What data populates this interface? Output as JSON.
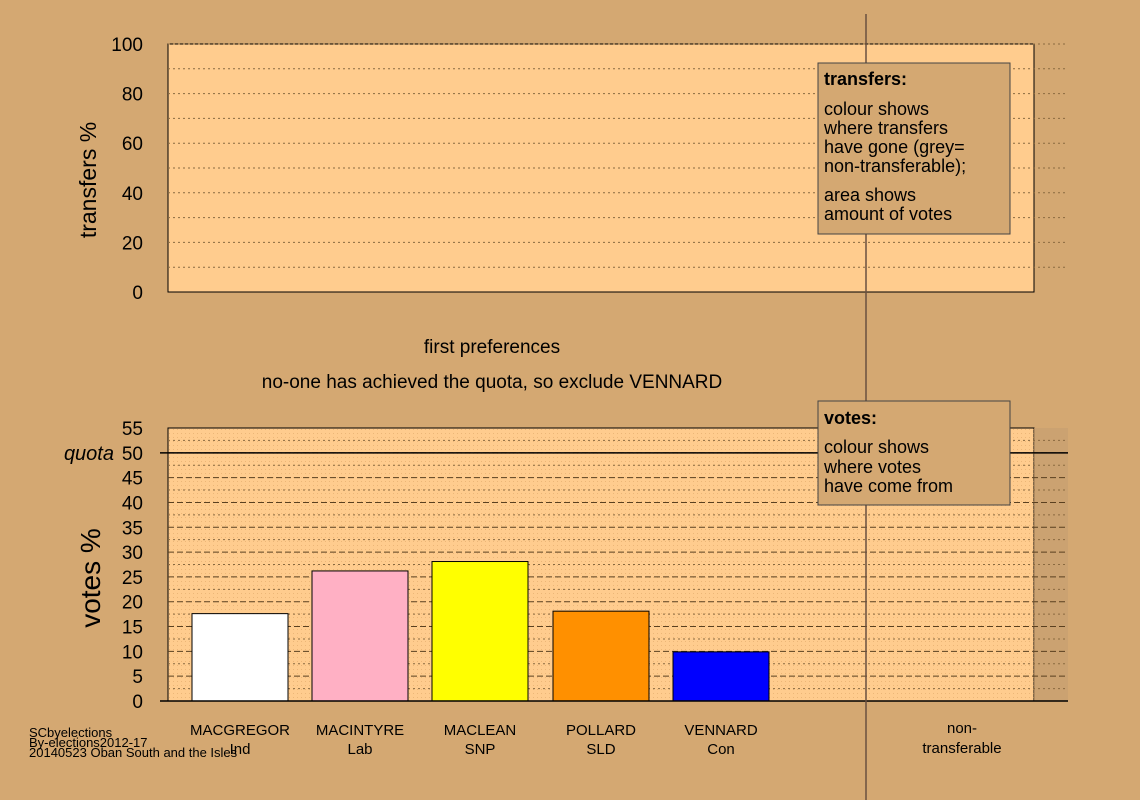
{
  "colors": {
    "page_bg": "#d4a872",
    "plot_bg": "#ffcc8e",
    "box_bg": "#d4a872",
    "nontransferable_shade": "#c8a070"
  },
  "chart_data": [
    {
      "type": "bar",
      "title": "",
      "ylabel": "transfers %",
      "ylim": [
        0,
        100
      ],
      "yticks": [
        0,
        20,
        40,
        60,
        80,
        100
      ],
      "grid": true,
      "values": []
    },
    {
      "type": "bar",
      "ylabel": "votes %",
      "ylim": [
        0,
        55
      ],
      "yticks": [
        0,
        5,
        10,
        15,
        20,
        25,
        30,
        35,
        40,
        45,
        50,
        55
      ],
      "grid": true,
      "quota": 50,
      "quota_label": "quota",
      "categories": [
        {
          "name": "MACGREGOR",
          "party": "Ind"
        },
        {
          "name": "MACINTYRE",
          "party": "Lab"
        },
        {
          "name": "MACLEAN",
          "party": "SNP"
        },
        {
          "name": "POLLARD",
          "party": "SLD"
        },
        {
          "name": "VENNARD",
          "party": "Con"
        }
      ],
      "values": [
        17.6,
        26.2,
        28.1,
        18.1,
        9.9
      ],
      "bar_colors": [
        "#ffffff",
        "#ffb0c4",
        "#ffff00",
        "#ff9000",
        "#0000ff"
      ],
      "nontransferable_label_1": "non-",
      "nontransferable_label_2": "transferable"
    }
  ],
  "stage": {
    "line1": "first preferences",
    "line2": "no-one has achieved the quota, so exclude VENNARD"
  },
  "transfers_box": {
    "title": "transfers:",
    "lines": [
      "colour shows",
      "where transfers",
      "have gone (grey=",
      "non-transferable);"
    ],
    "lines2": [
      "area shows",
      "amount of votes"
    ]
  },
  "votes_box": {
    "title": "votes:",
    "lines": [
      "colour shows",
      "where votes",
      "have come from"
    ]
  },
  "footer": {
    "line1": "SCbyelections",
    "line2": "By-elections2012-17",
    "line3": "20140523 Oban South and the Isles"
  }
}
